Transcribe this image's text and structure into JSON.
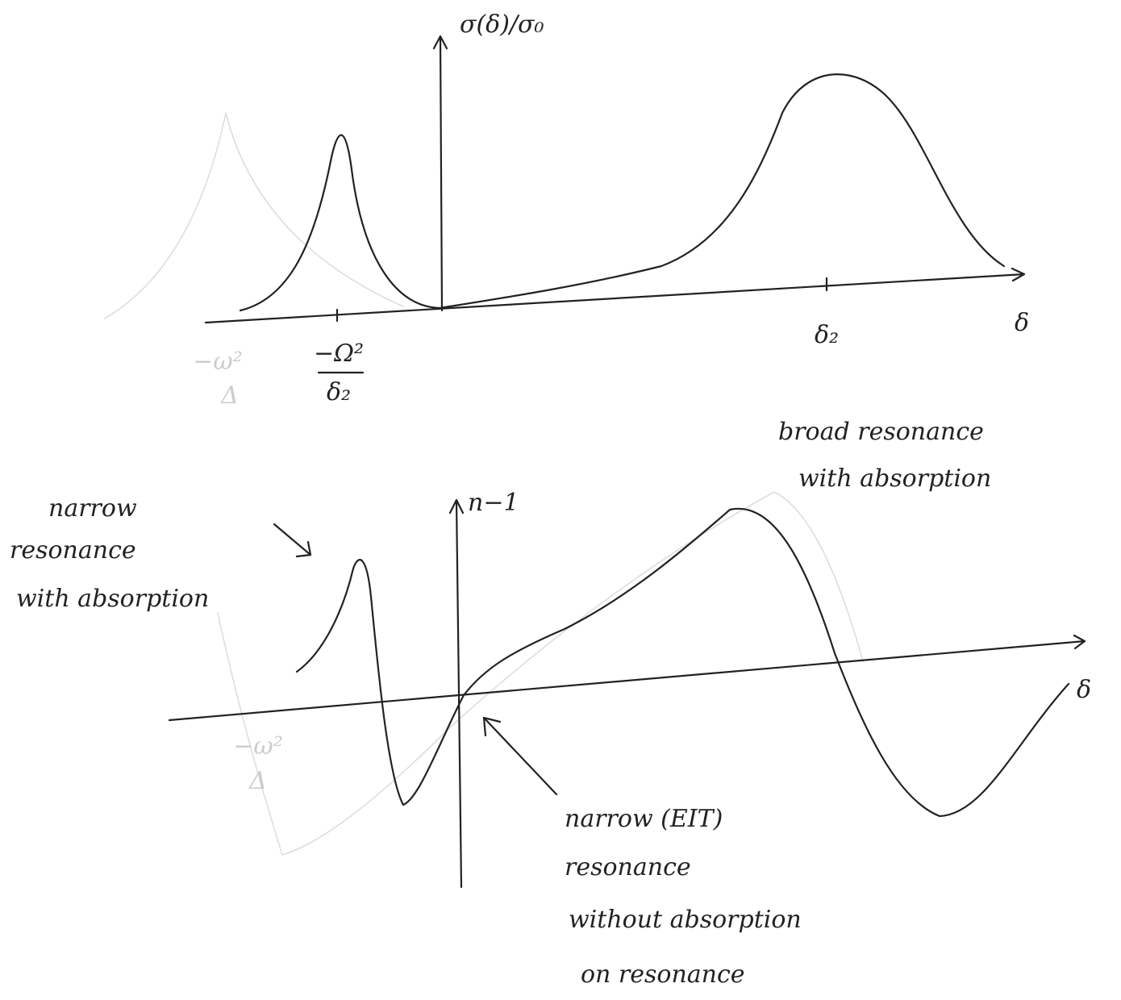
{
  "top_plot": {
    "y_label": "σ(δ)/σ₀",
    "x_label": "δ",
    "ticks": [
      {
        "numerator": "−Ω²",
        "denominator": "δ₂"
      },
      "δ₂"
    ],
    "faint_tick": {
      "numerator": "−ω²",
      "denominator": "Δ"
    }
  },
  "bottom_plot": {
    "y_label": "n−1",
    "x_label": "δ",
    "faint_tick": {
      "numerator": "−ω²",
      "denominator": "Δ"
    }
  },
  "annotations": [
    {
      "lines": [
        "broad resonance",
        "with absorption"
      ]
    },
    {
      "lines": [
        "narrow",
        "resonance",
        "with absorption"
      ]
    },
    {
      "lines": [
        "narrow (EIT)",
        "resonance",
        "without absorption",
        "on resonance"
      ]
    }
  ]
}
